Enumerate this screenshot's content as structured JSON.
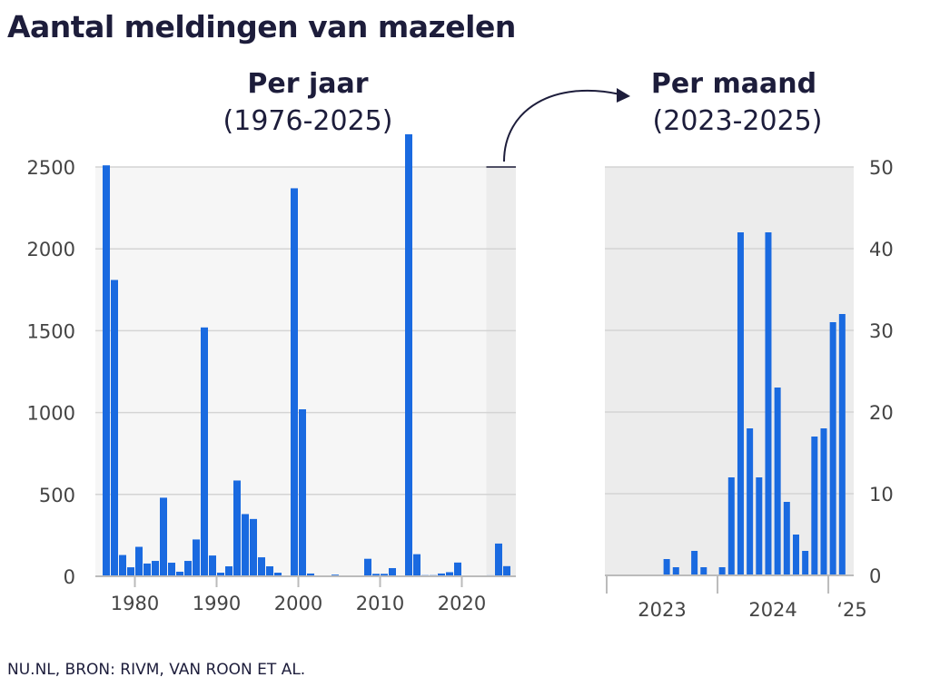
{
  "title": "Aantal meldingen van mazelen",
  "source": "NU.NL, BRON: RIVM, VAN ROON ET AL.",
  "colors": {
    "bar": "#1a6ae0",
    "panel": "#f6f6f6",
    "highlight": "#ececec"
  },
  "chart_data": [
    {
      "type": "bar",
      "title": "Per jaar",
      "subtitle": "(1976-2025)",
      "ylim": [
        0,
        2500
      ],
      "yticks": [
        "0",
        "500",
        "1000",
        "1500",
        "2000",
        "2500"
      ],
      "xticks": [
        "1980",
        "1990",
        "2000",
        "2010",
        "2020"
      ],
      "grid": true,
      "highlight_range": [
        "2023",
        "2025"
      ],
      "categories": [
        1976,
        1977,
        1978,
        1979,
        1980,
        1981,
        1982,
        1983,
        1984,
        1985,
        1986,
        1987,
        1988,
        1989,
        1990,
        1991,
        1992,
        1993,
        1994,
        1995,
        1996,
        1997,
        1998,
        1999,
        2000,
        2001,
        2002,
        2003,
        2004,
        2005,
        2006,
        2007,
        2008,
        2009,
        2010,
        2011,
        2012,
        2013,
        2014,
        2015,
        2016,
        2017,
        2018,
        2019,
        2020,
        2021,
        2022,
        2023,
        2024,
        2025
      ],
      "values": [
        2510,
        1810,
        130,
        55,
        180,
        78,
        94,
        480,
        83,
        28,
        94,
        225,
        1520,
        127,
        22,
        61,
        585,
        380,
        350,
        116,
        61,
        22,
        5,
        2370,
        1020,
        17,
        3,
        3,
        10,
        2,
        2,
        5,
        107,
        15,
        15,
        50,
        5,
        2700,
        135,
        7,
        7,
        17,
        25,
        84,
        3,
        3,
        3,
        6,
        200,
        62
      ]
    },
    {
      "type": "bar",
      "title": "Per maand",
      "subtitle": "(2023-2025)",
      "ylim": [
        0,
        50
      ],
      "yticks": [
        "0",
        "10",
        "20",
        "30",
        "40",
        "50"
      ],
      "xticks": [
        "2023",
        "2024",
        "‘25"
      ],
      "grid": true,
      "categories": [
        "2023-01",
        "2023-02",
        "2023-03",
        "2023-04",
        "2023-05",
        "2023-06",
        "2023-07",
        "2023-08",
        "2023-09",
        "2023-10",
        "2023-11",
        "2023-12",
        "2024-01",
        "2024-02",
        "2024-03",
        "2024-04",
        "2024-05",
        "2024-06",
        "2024-07",
        "2024-08",
        "2024-09",
        "2024-10",
        "2024-11",
        "2024-12",
        "2025-01",
        "2025-02"
      ],
      "values": [
        0,
        0,
        0,
        0,
        0,
        0,
        2,
        1,
        0,
        3,
        1,
        0,
        1,
        12,
        42,
        18,
        12,
        42,
        23,
        9,
        5,
        3,
        17,
        18,
        31,
        32
      ]
    }
  ]
}
